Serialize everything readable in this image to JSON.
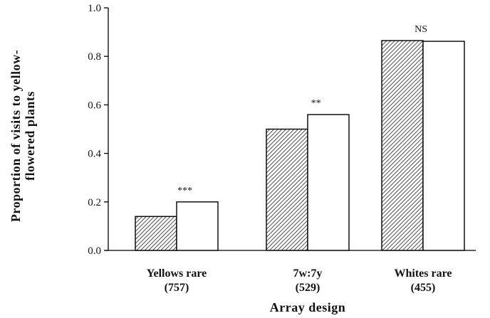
{
  "chart_data": {
    "type": "bar",
    "title": "",
    "xlabel": "Array design",
    "ylabel_lines": [
      "Proportion of visits to yellow-",
      "flowered plants"
    ],
    "ylim": [
      0,
      1.0
    ],
    "yticks": [
      "0.0",
      "0.2",
      "0.4",
      "0.6",
      "0.8",
      "1.0"
    ],
    "categories": [
      {
        "name": "Yellows rare",
        "count": "(757)"
      },
      {
        "name": "7w:7y",
        "count": "(529)"
      },
      {
        "name": "Whites rare",
        "count": "(455)"
      }
    ],
    "series": [
      {
        "fill": "hatched",
        "values": [
          0.14,
          0.5,
          0.865
        ]
      },
      {
        "fill": "white",
        "values": [
          0.2,
          0.56,
          0.862
        ]
      }
    ],
    "significance": [
      "***",
      "**",
      "NS"
    ],
    "grid": false,
    "legend": "none"
  }
}
